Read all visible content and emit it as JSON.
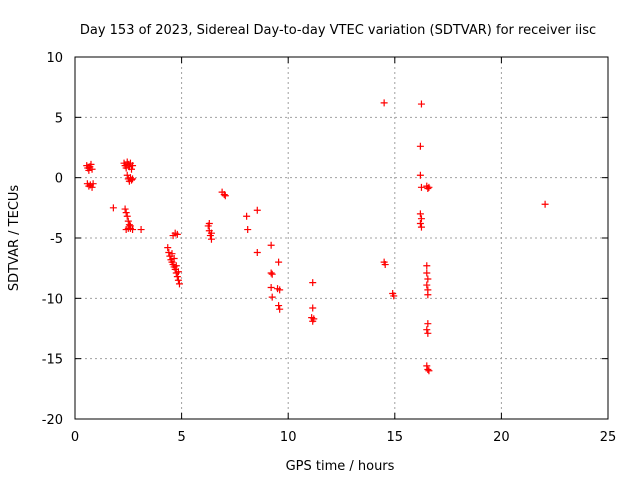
{
  "chart_data": {
    "type": "scatter",
    "title": "Day 153 of 2023, Sidereal Day-to-day VTEC variation (SDTVAR) for receiver iisc",
    "xlabel": "GPS time / hours",
    "ylabel": "SDTVAR / TECUs",
    "xlim": [
      0,
      25
    ],
    "ylim": [
      -20,
      10
    ],
    "xticks": [
      0,
      5,
      10,
      15,
      20,
      25
    ],
    "yticks": [
      -20,
      -15,
      -10,
      -5,
      0,
      5,
      10
    ],
    "grid": true,
    "marker": "+",
    "color": "#ff0000",
    "series": [
      {
        "name": "SDTVAR",
        "points": [
          [
            0.55,
            1.0
          ],
          [
            0.6,
            0.8
          ],
          [
            0.65,
            0.6
          ],
          [
            0.7,
            0.9
          ],
          [
            0.75,
            1.1
          ],
          [
            0.8,
            0.7
          ],
          [
            0.58,
            -0.5
          ],
          [
            0.65,
            -0.7
          ],
          [
            0.72,
            -0.6
          ],
          [
            0.8,
            -0.8
          ],
          [
            0.85,
            -0.5
          ],
          [
            1.8,
            -2.5
          ],
          [
            2.3,
            1.2
          ],
          [
            2.35,
            1.0
          ],
          [
            2.4,
            0.8
          ],
          [
            2.45,
            1.3
          ],
          [
            2.5,
            1.1
          ],
          [
            2.55,
            0.9
          ],
          [
            2.6,
            1.2
          ],
          [
            2.65,
            0.7
          ],
          [
            2.7,
            1.0
          ],
          [
            2.45,
            0.2
          ],
          [
            2.5,
            -0.1
          ],
          [
            2.55,
            -0.3
          ],
          [
            2.6,
            0.0
          ],
          [
            2.65,
            -0.2
          ],
          [
            2.7,
            -0.1
          ],
          [
            2.35,
            -2.6
          ],
          [
            2.4,
            -2.9
          ],
          [
            2.45,
            -3.2
          ],
          [
            2.5,
            -3.6
          ],
          [
            2.55,
            -3.9
          ],
          [
            2.6,
            -4.2
          ],
          [
            2.4,
            -4.3
          ],
          [
            2.5,
            -4.2
          ],
          [
            2.6,
            -4.0
          ],
          [
            2.7,
            -4.3
          ],
          [
            3.1,
            -4.3
          ],
          [
            4.35,
            -5.8
          ],
          [
            4.4,
            -6.2
          ],
          [
            4.45,
            -6.5
          ],
          [
            4.5,
            -6.8
          ],
          [
            4.55,
            -7.0
          ],
          [
            4.6,
            -7.2
          ],
          [
            4.65,
            -7.4
          ],
          [
            4.7,
            -7.6
          ],
          [
            4.75,
            -7.9
          ],
          [
            4.8,
            -8.2
          ],
          [
            4.85,
            -8.5
          ],
          [
            4.9,
            -8.8
          ],
          [
            4.55,
            -6.3
          ],
          [
            4.65,
            -6.7
          ],
          [
            4.75,
            -7.3
          ],
          [
            4.85,
            -7.8
          ],
          [
            4.6,
            -4.8
          ],
          [
            4.7,
            -4.6
          ],
          [
            4.8,
            -4.7
          ],
          [
            6.25,
            -4.0
          ],
          [
            6.3,
            -4.4
          ],
          [
            6.35,
            -4.8
          ],
          [
            6.4,
            -5.1
          ],
          [
            6.3,
            -3.8
          ],
          [
            6.4,
            -4.6
          ],
          [
            6.9,
            -1.2
          ],
          [
            7.0,
            -1.4
          ],
          [
            7.05,
            -1.5
          ],
          [
            8.05,
            -3.2
          ],
          [
            8.1,
            -4.3
          ],
          [
            8.55,
            -2.7
          ],
          [
            8.55,
            -6.2
          ],
          [
            9.2,
            -5.6
          ],
          [
            9.2,
            -7.9
          ],
          [
            9.25,
            -8.0
          ],
          [
            9.2,
            -9.1
          ],
          [
            9.25,
            -9.9
          ],
          [
            9.55,
            -7.0
          ],
          [
            9.5,
            -9.2
          ],
          [
            9.6,
            -9.3
          ],
          [
            9.55,
            -10.6
          ],
          [
            9.6,
            -10.9
          ],
          [
            11.15,
            -8.7
          ],
          [
            11.15,
            -10.8
          ],
          [
            11.1,
            -11.6
          ],
          [
            11.15,
            -11.9
          ],
          [
            11.2,
            -11.7
          ],
          [
            14.5,
            6.2
          ],
          [
            14.5,
            -7.0
          ],
          [
            14.55,
            -7.2
          ],
          [
            14.9,
            -9.6
          ],
          [
            14.95,
            -9.8
          ],
          [
            16.25,
            6.1
          ],
          [
            16.2,
            2.6
          ],
          [
            16.2,
            0.2
          ],
          [
            16.25,
            -0.8
          ],
          [
            16.2,
            -3.0
          ],
          [
            16.25,
            -3.4
          ],
          [
            16.2,
            -3.8
          ],
          [
            16.25,
            -4.1
          ],
          [
            16.5,
            -0.7
          ],
          [
            16.55,
            -0.9
          ],
          [
            16.6,
            -0.8
          ],
          [
            16.5,
            -7.3
          ],
          [
            16.5,
            -7.9
          ],
          [
            16.55,
            -8.4
          ],
          [
            16.5,
            -8.9
          ],
          [
            16.55,
            -9.3
          ],
          [
            16.55,
            -9.7
          ],
          [
            16.55,
            -12.1
          ],
          [
            16.5,
            -12.6
          ],
          [
            16.55,
            -12.9
          ],
          [
            16.5,
            -15.6
          ],
          [
            16.55,
            -15.9
          ],
          [
            16.6,
            -16.0
          ],
          [
            22.05,
            -2.2
          ]
        ]
      }
    ]
  }
}
